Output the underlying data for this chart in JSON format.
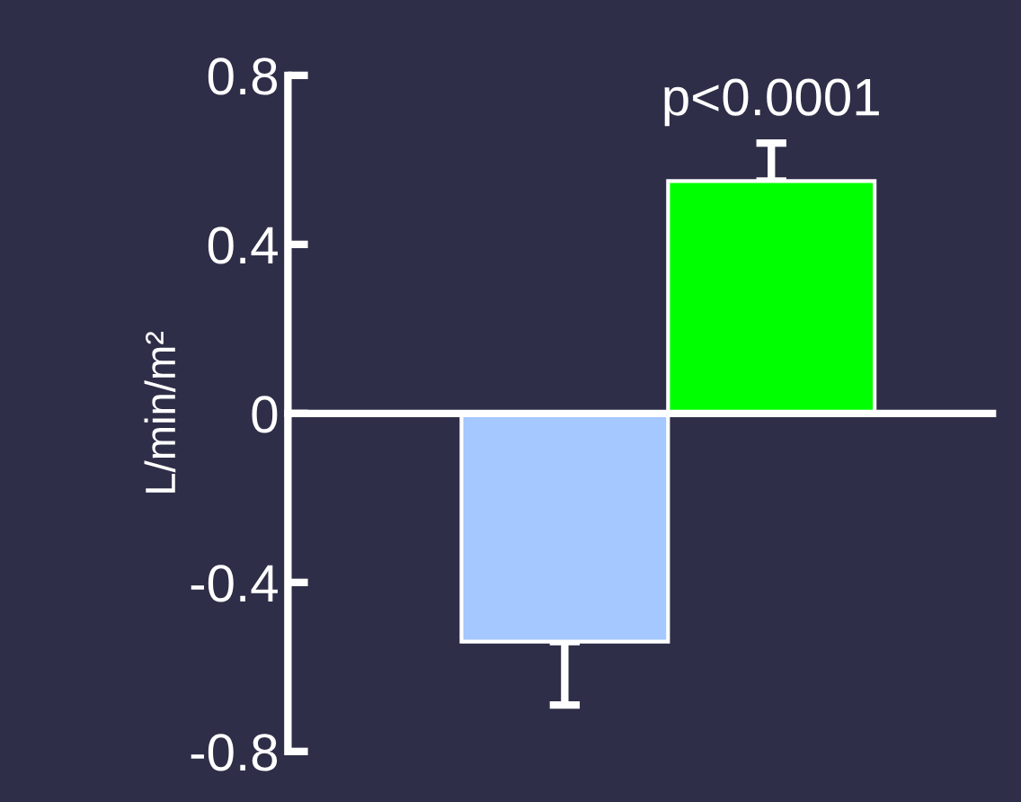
{
  "chart_data": {
    "type": "bar",
    "ylabel": "L/min/m²",
    "categories": [
      null,
      null
    ],
    "values": [
      -0.54,
      0.55
    ],
    "colors": [
      "#a4c8ff",
      "#00ff00"
    ],
    "errors": [
      [
        -0.69,
        -0.54
      ],
      [
        0.55,
        0.64
      ]
    ],
    "ylim": [
      -0.8,
      0.8
    ],
    "yticks": [
      0.8,
      0.4,
      0,
      -0.4,
      -0.8
    ],
    "annotations": [
      {
        "text": "p<0.0001",
        "y": 0.64
      }
    ]
  }
}
